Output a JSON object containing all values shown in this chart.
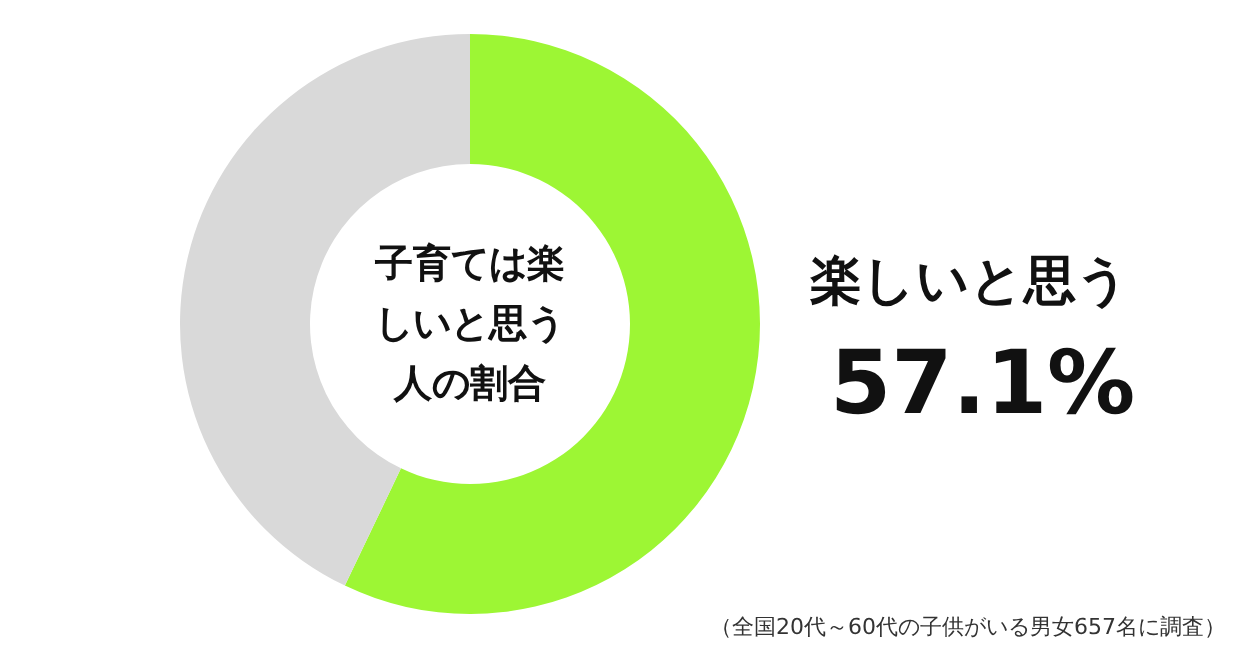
{
  "chart_data": {
    "type": "donut",
    "title": "子育ては楽しいと思う人の割合",
    "categories": [
      "楽しいと思う",
      null
    ],
    "values": [
      57.1,
      42.9
    ],
    "colors": [
      "#9df634",
      "#d9d9d9"
    ],
    "value_labels": [
      "57.1%",
      null
    ],
    "legend": false,
    "annotations": [
      "（全国20代～60代の子供がいる男女657名に調査）"
    ]
  }
}
